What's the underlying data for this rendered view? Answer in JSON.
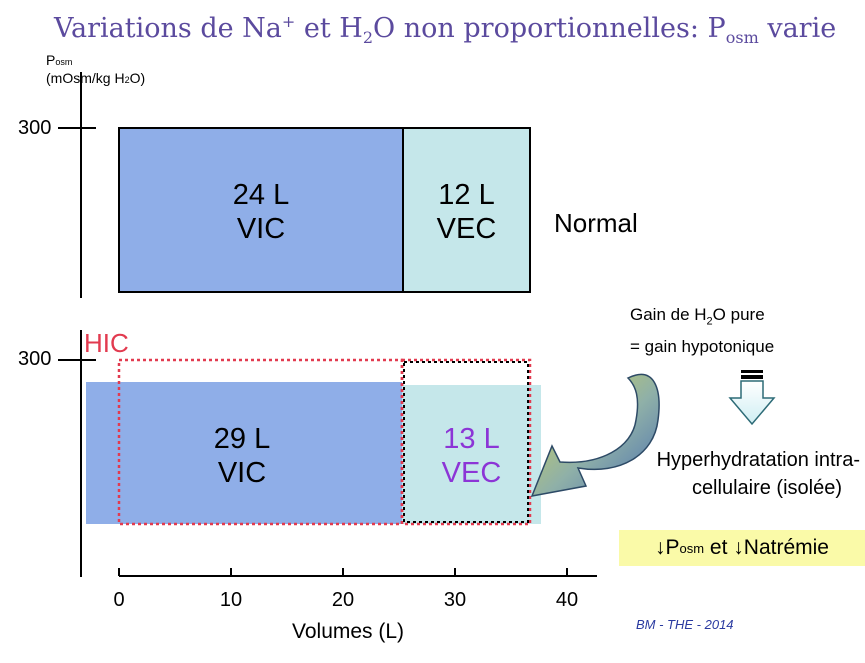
{
  "title": {
    "part1": "Variations de Na",
    "sup": "+",
    "part2": " et H",
    "sub1": "2",
    "part3": "O non proportionnelles: P",
    "sub2": "osm",
    "part4": " varie"
  },
  "y_axis": {
    "label_main": "P",
    "label_sub": "osm",
    "unit_pre": "(mOsm/kg H",
    "unit_sub": "2",
    "unit_post": "O)",
    "tick_top": "300",
    "tick_bottom": "300"
  },
  "normal_state": {
    "vic_volume": "24 L",
    "vic_label": "VIC",
    "vec_volume": "12 L",
    "vec_label": "VEC",
    "state_label": "Normal"
  },
  "altered_state": {
    "vic_volume": "29 L",
    "vic_label": "VIC",
    "vec_volume": "13 L",
    "vec_label": "VEC",
    "tag": "HIC"
  },
  "annotation": {
    "gain_line1_pre": "Gain de H",
    "gain_line1_sub": "2",
    "gain_line1_post": "O pure",
    "gain_line2": "= gain hypotonique",
    "result_line1": "Hyperhydratation intra-",
    "result_line2": "cellulaire (isolée)",
    "effect_arrow1": "↓",
    "effect_p": "P",
    "effect_sub": "osm",
    "effect_mid": " et ",
    "effect_arrow2": "↓",
    "effect_end": "Natrémie"
  },
  "x_axis": {
    "label": "Volumes (L)",
    "ticks": [
      "0",
      "10",
      "20",
      "30",
      "40"
    ]
  },
  "credit": "BM - THE - 2014",
  "colors": {
    "vic": "#8faee8",
    "vec": "#c5e7ea",
    "title": "#5b4a9e",
    "hic": "#e23a4f",
    "vec_altered_text": "#8c35d6",
    "result_bg": "#fafaa8"
  }
}
